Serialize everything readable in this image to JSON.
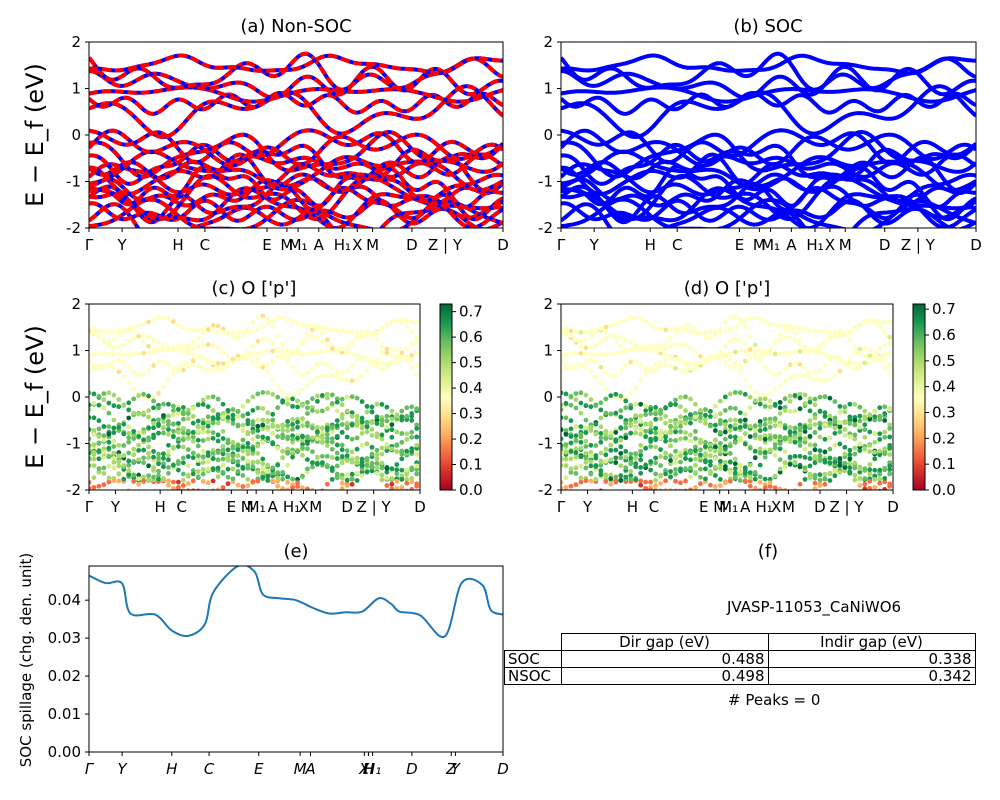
{
  "colors": {
    "non_soc_a": "#ff0000",
    "non_soc_b": "#0000ff",
    "soc": "#0000ff",
    "spillage_line": "#1f77b4",
    "colormap": [
      "#a50026",
      "#d73027",
      "#f46d43",
      "#fdae61",
      "#fee08b",
      "#ffffbf",
      "#d9ef8b",
      "#a6d96a",
      "#66bd63",
      "#1a9850",
      "#006837"
    ]
  },
  "ylabel_bands": "E − E_f (eV)",
  "kpath_labels": [
    "Γ",
    "Y",
    "H",
    "C",
    "E",
    "M",
    "M₁",
    "A",
    "H₁",
    "X",
    "M",
    "D",
    "Z | Y",
    "D"
  ],
  "kpath_labels_spillage": [
    "Γ",
    "Y",
    "H",
    "C",
    "E",
    "M",
    "A",
    "X",
    "H",
    "H₁",
    "D",
    "Z",
    "Y",
    "D"
  ],
  "panel_a": {
    "title": "(a) Non-SOC"
  },
  "panel_b": {
    "title": "(b) SOC"
  },
  "panel_c": {
    "title": "(c)  O ['p']",
    "colorbar_ticks": [
      "0.0",
      "0.1",
      "0.2",
      "0.3",
      "0.4",
      "0.5",
      "0.6",
      "0.7"
    ]
  },
  "panel_d": {
    "title": "(d) O ['p']",
    "colorbar_ticks": [
      "0.0",
      "0.1",
      "0.2",
      "0.3",
      "0.4",
      "0.5",
      "0.6",
      "0.7"
    ]
  },
  "panel_e": {
    "title": "(e)",
    "ylabel": "SOC spillage (chg. den. unit)"
  },
  "panel_f": {
    "title": "(f)",
    "material": "JVASP-11053_CaNiWO6",
    "table": {
      "headers": [
        "Dir gap (eV)",
        "Indir gap (eV)"
      ],
      "rows": [
        {
          "label": "SOC",
          "dir": "0.488",
          "indir": "0.338"
        },
        {
          "label": "NSOC",
          "dir": "0.498",
          "indir": "0.342"
        }
      ]
    },
    "peaks": "# Peaks = 0"
  },
  "chart_data": [
    {
      "type": "line",
      "title": "(a) Non-SOC",
      "ylabel": "E − E_f (eV)",
      "ylim": [
        -2,
        2
      ],
      "yticks": [
        -2,
        -1,
        0,
        1,
        2
      ],
      "x_tick_labels": [
        "Γ",
        "Y",
        "H",
        "C",
        "E",
        "M",
        "M₁",
        "A",
        "H₁",
        "X",
        "M",
        "D",
        "Z | Y",
        "D"
      ],
      "series": [
        {
          "values_conduction_band_maxima": [
            1.0,
            1.4,
            1.6,
            1.65,
            1.0,
            1.1,
            1.2,
            1.45,
            1.6,
            1.7,
            1.65
          ]
        },
        {
          "values_conduction_band_minima": [
            0.4,
            0.35,
            0.9,
            1.5,
            0.4,
            0.7,
            0.8,
            1.0,
            0.9,
            0.35,
            0.9
          ]
        }
      ],
      "valence_band_range": [
        -2,
        -0.1
      ]
    },
    {
      "type": "line",
      "title": "(b) SOC",
      "ylim": [
        -2,
        2
      ],
      "yticks": [
        -2,
        -1,
        0,
        1,
        2
      ],
      "x_tick_labels": [
        "Γ",
        "Y",
        "H",
        "C",
        "E",
        "M",
        "M₁",
        "A",
        "H₁",
        "X",
        "M",
        "D",
        "Z | Y",
        "D"
      ],
      "valence_band_range": [
        -2,
        -0.1
      ]
    },
    {
      "type": "scatter",
      "title": "(c)  O ['p']",
      "ylabel": "E − E_f (eV)",
      "ylim": [
        -2,
        2
      ],
      "yticks": [
        -2,
        -1,
        0,
        1,
        2
      ],
      "colorbar_range": [
        0.0,
        0.73
      ],
      "x_tick_labels": [
        "Γ",
        "Y",
        "H",
        "C",
        "E",
        "M",
        "M₁",
        "A",
        "H₁",
        "X",
        "M",
        "D",
        "Z | Y",
        "D"
      ]
    },
    {
      "type": "scatter",
      "title": "(d) O ['p']",
      "ylim": [
        -2,
        2
      ],
      "yticks": [
        -2,
        -1,
        0,
        1,
        2
      ],
      "colorbar_range": [
        0.0,
        0.72
      ],
      "x_tick_labels": [
        "Γ",
        "Y",
        "H",
        "C",
        "E",
        "M",
        "M₁",
        "A",
        "H₁",
        "X",
        "M",
        "D",
        "Z | Y",
        "D"
      ]
    },
    {
      "type": "line",
      "title": "(e)",
      "ylabel": "SOC spillage (chg. den. unit)",
      "ylim": [
        0,
        0.049
      ],
      "yticks": [
        0.0,
        0.01,
        0.02,
        0.03,
        0.04
      ],
      "x_tick_labels": [
        "Γ",
        "Y",
        "H",
        "C",
        "E",
        "M",
        "A",
        "X",
        "H",
        "H₁",
        "D",
        "Z",
        "Y",
        "D"
      ],
      "x": [
        0.0,
        0.04,
        0.08,
        0.1,
        0.16,
        0.2,
        0.24,
        0.28,
        0.3,
        0.36,
        0.4,
        0.42,
        0.46,
        0.5,
        0.54,
        0.58,
        0.62,
        0.66,
        0.7,
        0.73,
        0.75,
        0.8,
        0.86,
        0.9,
        0.95,
        0.97,
        1.0
      ],
      "values": [
        0.0465,
        0.0445,
        0.0444,
        0.0365,
        0.0362,
        0.032,
        0.0306,
        0.0337,
        0.042,
        0.049,
        0.0475,
        0.0415,
        0.0405,
        0.04,
        0.038,
        0.0365,
        0.0368,
        0.037,
        0.0405,
        0.039,
        0.037,
        0.036,
        0.0305,
        0.0445,
        0.044,
        0.0375,
        0.0362
      ]
    }
  ]
}
